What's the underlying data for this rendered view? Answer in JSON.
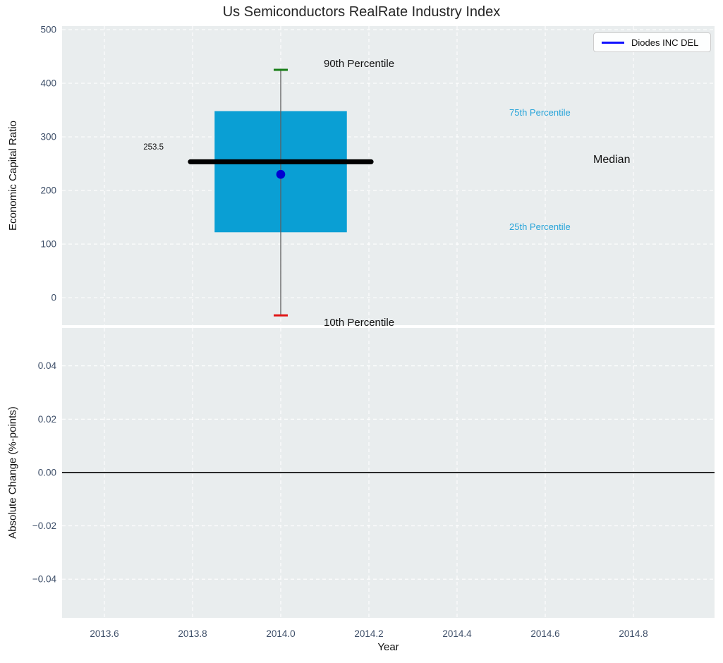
{
  "chart_data": {
    "type": "boxplot",
    "title": "Us Semiconductors RealRate Industry Index",
    "xlabel": "Year",
    "xlim": [
      2013.504,
      2014.984
    ],
    "x_ticks": [
      {
        "v": 2013.6,
        "label": "2013.6"
      },
      {
        "v": 2013.8,
        "label": "2013.8"
      },
      {
        "v": 2014.0,
        "label": "2014.0"
      },
      {
        "v": 2014.2,
        "label": "2014.2"
      },
      {
        "v": 2014.4,
        "label": "2014.4"
      },
      {
        "v": 2014.6,
        "label": "2014.6"
      },
      {
        "v": 2014.8,
        "label": "2014.8"
      }
    ],
    "grid": true,
    "legend": {
      "label": "Diodes INC DEL",
      "position": "upper right"
    },
    "panels": [
      {
        "id": "top",
        "ylabel": "Economic Capital Ratio",
        "ylim": [
          -51.3,
          506.6
        ],
        "y_ticks": [
          {
            "v": 0,
            "label": "0"
          },
          {
            "v": 100,
            "label": "100"
          },
          {
            "v": 200,
            "label": "200"
          },
          {
            "v": 300,
            "label": "300"
          },
          {
            "v": 400,
            "label": "400"
          },
          {
            "v": 500,
            "label": "500"
          }
        ],
        "box": {
          "x_center": 2014.0,
          "box_halfwidth": 0.15,
          "median_halfwidth": 0.205,
          "cap_halfwidth": 0.016,
          "p10": -33,
          "p25": 122,
          "median": 253.5,
          "p75": 348,
          "p90": 425
        },
        "company_point": {
          "label": "Diodes INC DEL",
          "x": 2014.0,
          "value": 230
        },
        "annotations": {
          "p90": "90th Percentile",
          "p75": "75th Percentile",
          "median_label": "Median",
          "p25": "25th Percentile",
          "p10": "10th Percentile",
          "median_value": "253.5"
        }
      },
      {
        "id": "bottom",
        "ylabel": "Absolute Change (%-points)",
        "ylim": [
          -0.0545,
          0.0542
        ],
        "y_ticks": [
          {
            "v": 0.04,
            "label": "0.04"
          },
          {
            "v": 0.02,
            "label": "0.02"
          },
          {
            "v": 0.0,
            "label": "0.00"
          },
          {
            "v": -0.02,
            "label": "−0.02"
          },
          {
            "v": -0.04,
            "label": "−0.04"
          }
        ],
        "zero_line": 0.0
      }
    ]
  },
  "colors": {
    "plot_background": "#e9edee",
    "gridline": "#ffffff",
    "tick_label": "#3d4e68",
    "box_fill": "#0a9fd4",
    "whisker": "#5f5f5f",
    "cap_90": "#177d17",
    "cap_10": "#e11717",
    "median_line": "#000000",
    "company_dot": "#0000d2",
    "legend_line": "#1010ff",
    "annotation_blue": "#27a4d9",
    "zero_line": "#000000",
    "title_text": "#262626"
  }
}
